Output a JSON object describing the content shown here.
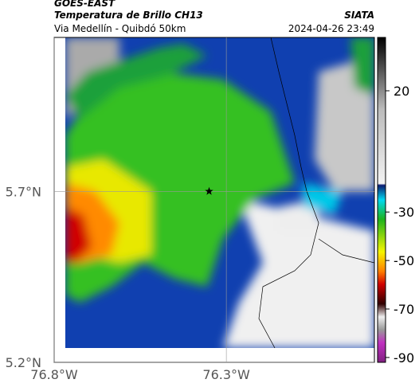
{
  "map": {
    "source": "GOES-EAST",
    "title": "Temperatura de Brillo CH13",
    "subtitle": "Via Medellín - Quibdó 50km",
    "agency": "SIATA",
    "timestamp": "2024-04-26 23:49",
    "lonlim": [
      -76.8,
      -75.87
    ],
    "latlim": [
      5.2,
      6.15
    ],
    "xticks": [
      {
        "value": -76.8,
        "label": "76.8°W"
      },
      {
        "value": -76.3,
        "label": "76.3°W"
      }
    ],
    "yticks": [
      {
        "value": 5.2,
        "label": "5.2°N"
      },
      {
        "value": 5.7,
        "label": "5.7°N"
      }
    ],
    "grid": true,
    "marker": {
      "lon": -76.35,
      "lat": 5.7
    },
    "colorbar": {
      "lim": [
        -92,
        42
      ],
      "ticks": [
        20,
        -30,
        -50,
        -70,
        -90
      ]
    }
  }
}
